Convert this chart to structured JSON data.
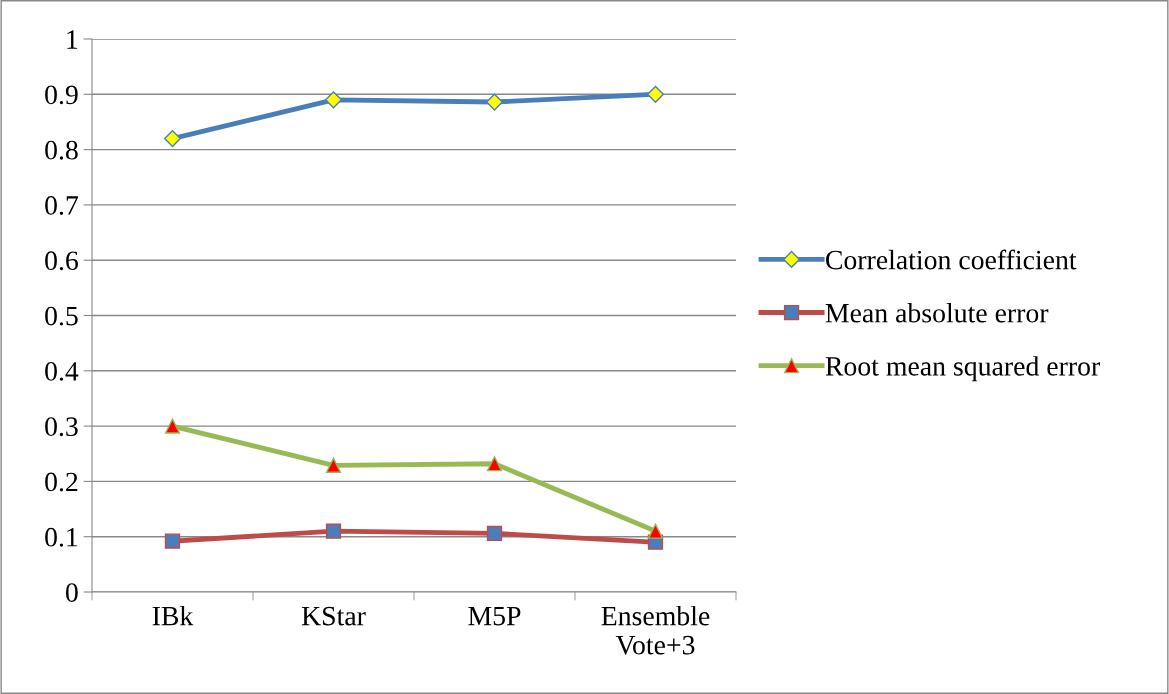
{
  "chart_data": {
    "type": "line",
    "categories": [
      "IBk",
      "KStar",
      "M5P",
      "Ensemble\nVote+3"
    ],
    "series": [
      {
        "name": "Correlation coefficient",
        "color": "#4a7ebb",
        "marker": "diamond",
        "values": [
          0.82,
          0.89,
          0.886,
          0.9
        ]
      },
      {
        "name": "Mean absolute error",
        "color": "#be4b48",
        "marker": "square",
        "values": [
          0.092,
          0.11,
          0.106,
          0.09
        ]
      },
      {
        "name": "Root mean squared error",
        "color": "#98b954",
        "marker": "triangle",
        "values": [
          0.3,
          0.229,
          0.232,
          0.11
        ]
      }
    ],
    "ylim": [
      0,
      1
    ],
    "yticks": [
      0,
      0.1,
      0.2,
      0.3,
      0.4,
      0.5,
      0.6,
      0.7,
      0.8,
      0.9,
      1
    ],
    "grid": "y",
    "legend": "right",
    "line_style": "solid"
  }
}
